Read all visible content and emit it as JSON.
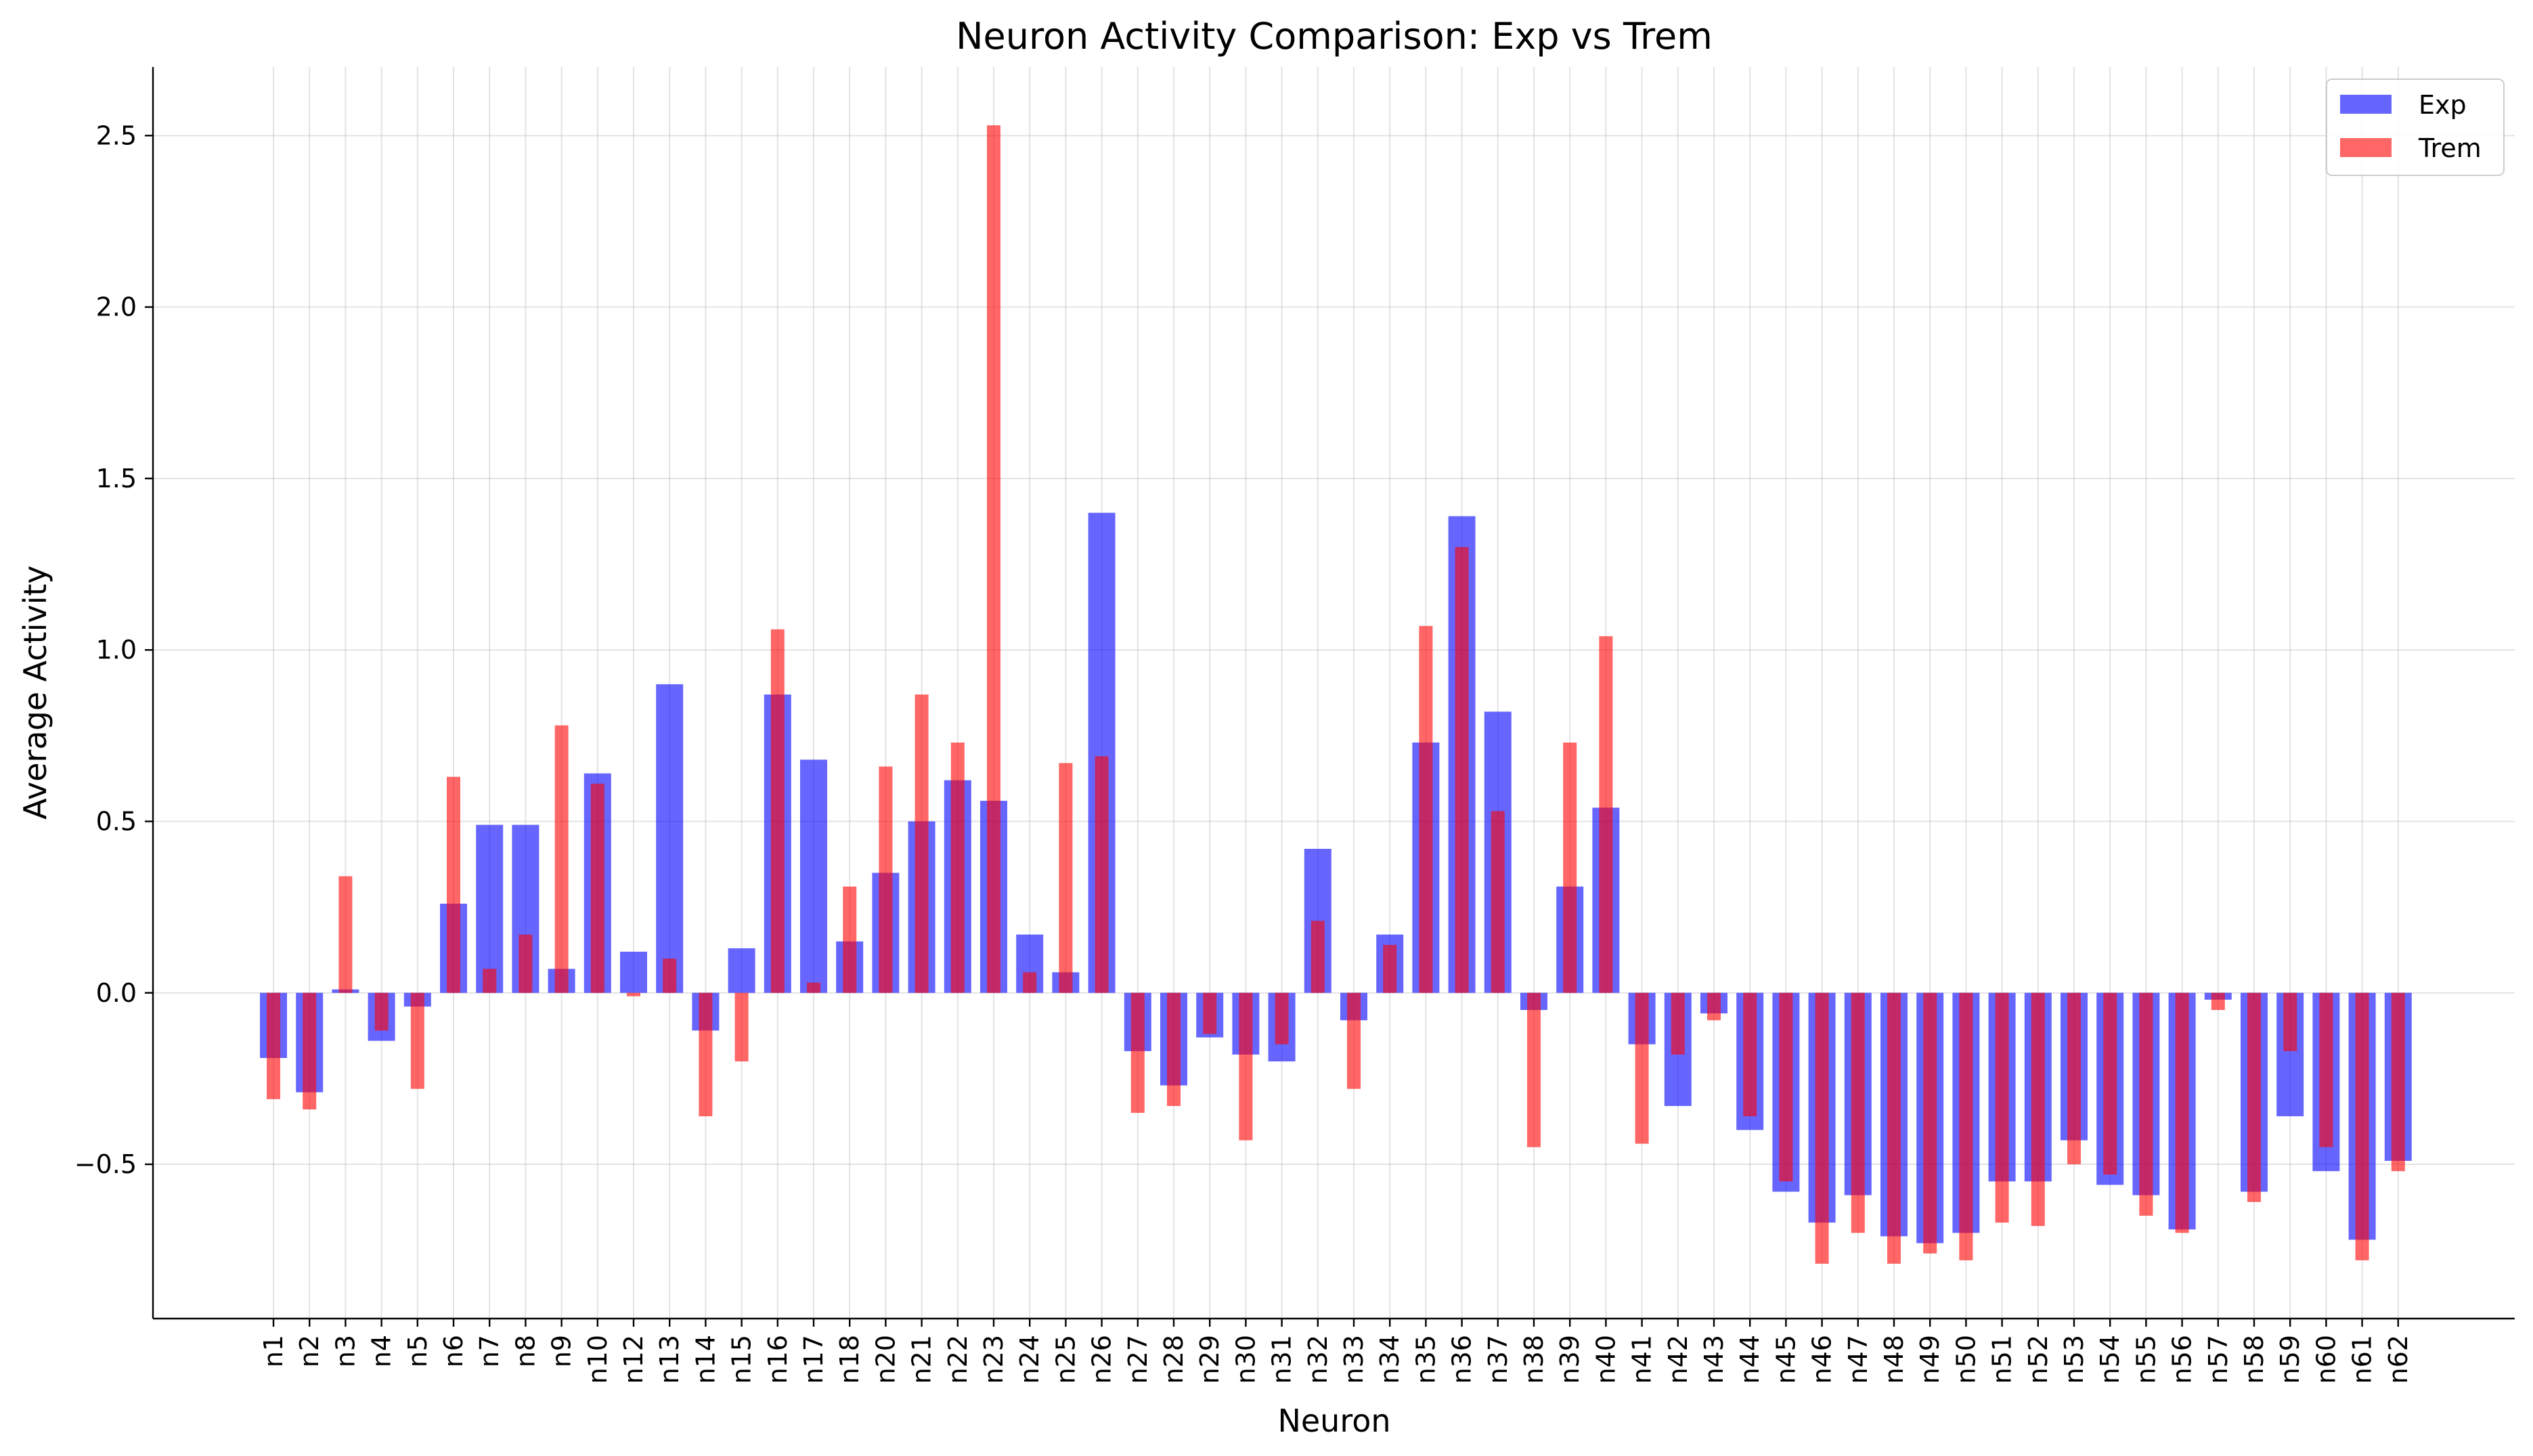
{
  "chart_data": {
    "type": "bar",
    "title": "Neuron Activity Comparison: Exp vs Trem",
    "xlabel": "Neuron",
    "ylabel": "Average Activity",
    "ylim": [
      -0.95,
      2.7
    ],
    "yticks": [
      -0.5,
      0.0,
      0.5,
      1.0,
      1.5,
      2.0,
      2.5
    ],
    "ytick_labels": [
      "−0.5",
      "0.0",
      "0.5",
      "1.0",
      "1.5",
      "2.0",
      "2.5"
    ],
    "grid": true,
    "legend_position": "top-right",
    "categories": [
      "n1",
      "n2",
      "n3",
      "n4",
      "n5",
      "n6",
      "n7",
      "n8",
      "n9",
      "n10",
      "n12",
      "n13",
      "n14",
      "n15",
      "n16",
      "n17",
      "n18",
      "n20",
      "n21",
      "n22",
      "n23",
      "n24",
      "n25",
      "n26",
      "n27",
      "n28",
      "n29",
      "n30",
      "n31",
      "n32",
      "n33",
      "n34",
      "n35",
      "n36",
      "n37",
      "n38",
      "n39",
      "n40",
      "n41",
      "n42",
      "n43",
      "n44",
      "n45",
      "n46",
      "n47",
      "n48",
      "n49",
      "n50",
      "n51",
      "n52",
      "n53",
      "n54",
      "n55",
      "n56",
      "n57",
      "n58",
      "n59",
      "n60",
      "n61",
      "n62"
    ],
    "series": [
      {
        "name": "Exp",
        "color": "#0000ff",
        "opacity": 0.6,
        "values": [
          -0.19,
          -0.29,
          0.01,
          -0.14,
          -0.04,
          0.26,
          0.49,
          0.49,
          0.07,
          0.64,
          0.12,
          0.9,
          -0.11,
          0.13,
          0.87,
          0.68,
          0.15,
          0.35,
          0.5,
          0.62,
          0.56,
          0.17,
          0.06,
          1.4,
          -0.17,
          -0.27,
          -0.13,
          -0.18,
          -0.2,
          0.42,
          -0.08,
          0.17,
          0.73,
          1.39,
          0.82,
          -0.05,
          0.31,
          0.54,
          -0.15,
          -0.33,
          -0.06,
          -0.4,
          -0.58,
          -0.67,
          -0.59,
          -0.71,
          -0.73,
          -0.7,
          -0.55,
          -0.55,
          -0.43,
          -0.56,
          -0.59,
          -0.69,
          -0.02,
          -0.58,
          -0.36,
          -0.52,
          -0.72,
          -0.49
        ]
      },
      {
        "name": "Trem",
        "color": "#ff0000",
        "opacity": 0.6,
        "values": [
          -0.31,
          -0.34,
          0.34,
          -0.11,
          -0.28,
          0.63,
          0.07,
          0.17,
          0.78,
          0.61,
          -0.01,
          0.1,
          -0.36,
          -0.2,
          1.06,
          0.03,
          0.31,
          0.66,
          0.87,
          0.73,
          2.53,
          0.06,
          0.67,
          0.69,
          -0.35,
          -0.33,
          -0.12,
          -0.43,
          -0.15,
          0.21,
          -0.28,
          0.14,
          1.07,
          1.3,
          0.53,
          -0.45,
          0.73,
          1.04,
          -0.44,
          -0.18,
          -0.08,
          -0.36,
          -0.55,
          -0.79,
          -0.7,
          -0.79,
          -0.76,
          -0.78,
          -0.67,
          -0.68,
          -0.5,
          -0.53,
          -0.65,
          -0.7,
          -0.05,
          -0.61,
          -0.17,
          -0.45,
          -0.78,
          -0.52
        ]
      }
    ]
  }
}
